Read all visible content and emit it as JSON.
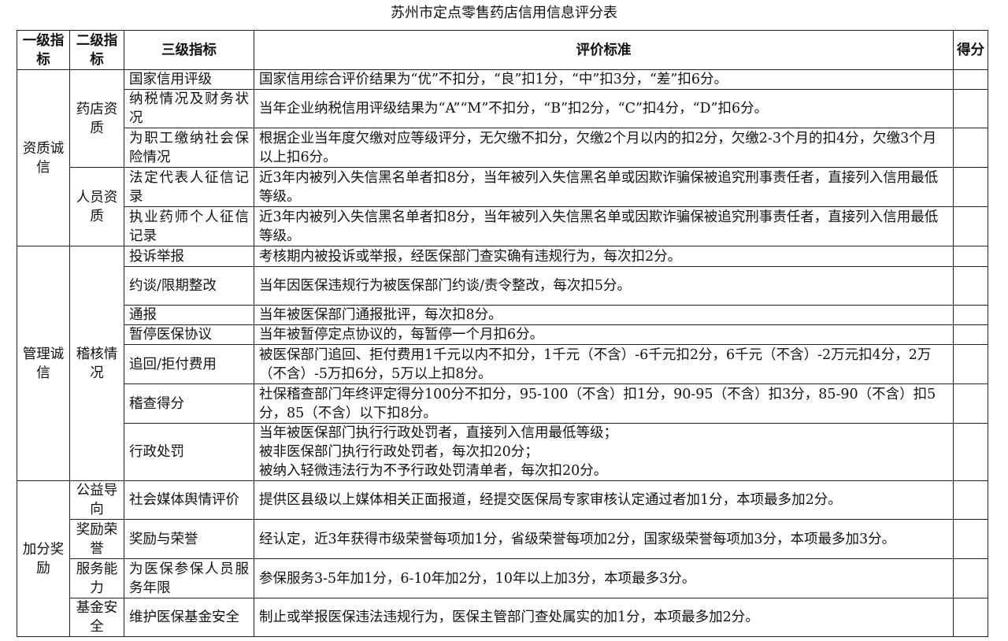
{
  "title": "苏州市定点零售药店信用信息评分表",
  "headers": [
    "一级指标",
    "二级指标",
    "三级指标",
    "评价标准",
    "得分"
  ],
  "groups": [
    {
      "level1": "资质诚信",
      "subgroups": [
        {
          "level2": "药店资质",
          "items": [
            {
              "level3": "国家信用评级",
              "criteria": "国家信用综合评价结果为“优”不扣分，“良”扣1分，“中”扣3分，“差”扣6分。",
              "score": ""
            },
            {
              "level3": "纳税情况及财务状况",
              "criteria": "当年企业纳税信用评级结果为“A”“M”不扣分，“B”扣2分，“C”扣4分，“D”扣6分。",
              "score": ""
            },
            {
              "level3": "为职工缴纳社会保险情况",
              "criteria": "根据企业当年度欠缴对应等级评分，无欠缴不扣分，欠缴2个月以内的扣2分，欠缴2-3个月的扣4分，欠缴3个月以上扣6分。",
              "score": ""
            }
          ]
        },
        {
          "level2": "人员资质",
          "items": [
            {
              "level3": "法定代表人征信记录",
              "criteria": "近3年内被列入失信黑名单者扣8分，当年被列入失信黑名单或因欺诈骗保被追究刑事责任者，直接列入信用最低等级。",
              "score": ""
            },
            {
              "level3": "执业药师个人征信记录",
              "criteria": "近3年内被列入失信黑名单者扣8分，当年被列入失信黑名单或因欺诈骗保被追究刑事责任者，直接列入信用最低等级。",
              "score": ""
            }
          ]
        }
      ]
    },
    {
      "level1": "管理诚信",
      "subgroups": [
        {
          "level2": "稽核情况",
          "items": [
            {
              "level3": "投诉举报",
              "criteria": "考核期内被投诉或举报，经医保部门查实确有违规行为，每次扣2分。",
              "score": ""
            },
            {
              "level3": "约谈/限期整改",
              "criteria": "当年因医保违规行为被医保部门约谈/责令整改，每次扣5分。",
              "score": ""
            },
            {
              "level3": "通报",
              "criteria": "当年被医保部门通报批评，每次扣8分。",
              "score": ""
            },
            {
              "level3": "暂停医保协议",
              "criteria": "当年被暂停定点协议的，每暂停一个月扣6分。",
              "score": ""
            },
            {
              "level3": "追回/拒付费用",
              "criteria": "被医保部门追回、拒付费用1千元以内不扣分，1千元（不含）-6千元扣2分，6千元（不含）-2万元扣4分，2万（不含）-5万扣6分，5万以上扣8分。",
              "score": ""
            },
            {
              "level3": "稽查得分",
              "criteria": "社保稽查部门年终评定得分100分不扣分，95-100（不含）扣1分，90-95（不含）扣3分，85-90（不含）扣5分，85（不含）以下扣8分。",
              "score": ""
            },
            {
              "level3": "行政处罚",
              "criteria": "当年被医保部门执行行政处罚者，直接列入信用最低等级；\n被非医保部门执行行政处罚者，每次扣20分；\n被纳入轻微违法行为不予行政处罚清单者，每次扣20分。",
              "score": ""
            }
          ]
        }
      ]
    },
    {
      "level1": "加分奖励",
      "subgroups": [
        {
          "level2": "公益导向",
          "items": [
            {
              "level3": "社会媒体舆情评价",
              "criteria": "提供区县级以上媒体相关正面报道，经提交医保局专家审核认定通过者加1分，本项最多加2分。",
              "score": ""
            }
          ]
        },
        {
          "level2": "奖励荣誉",
          "items": [
            {
              "level3": "奖励与荣誉",
              "criteria": "经认定，近3年获得市级荣誉每项加1分，省级荣誉每项加2分，国家级荣誉每项加3分，本项最多加3分。",
              "score": ""
            }
          ]
        },
        {
          "level2": "服务能力",
          "items": [
            {
              "level3": "为医保参保人员服务年限",
              "criteria": "参保服务3-5年加1分，6-10年加2分，10年以上加3分，本项最多3分。",
              "score": ""
            }
          ]
        },
        {
          "level2": "基金安全",
          "items": [
            {
              "level3": "维护医保基金安全",
              "criteria": "制止或举报医保违法违规行为，医保主管部门查处属实的加1分，本项最多加2分。",
              "score": ""
            }
          ]
        }
      ]
    }
  ]
}
